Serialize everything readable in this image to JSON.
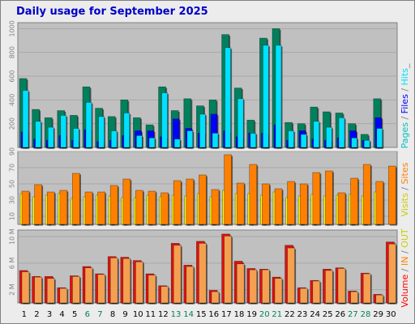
{
  "title": "Daily usage for September 2025",
  "colors": {
    "pages": "#00805c",
    "files": "#0000ff",
    "hits": "#00e0ff",
    "visits": "#ffff00",
    "sites": "#ff8000",
    "volume": "#ff0000",
    "in": "#ff8000",
    "out": "#ffff00",
    "plot_bg": "#c0c0c0",
    "weekend_label": "#00805c",
    "weekday_label": "#000000"
  },
  "labels": {
    "top_legend": [
      {
        "text": "Pages",
        "color": "#00c0c0"
      },
      {
        "text": " / ",
        "color": "#808080"
      },
      {
        "text": "Files",
        "color": "#0000ff"
      },
      {
        "text": " / ",
        "color": "#808080"
      },
      {
        "text": "Hits",
        "color": "#00e0ff"
      },
      {
        "text": "_",
        "color": "#808080"
      }
    ],
    "mid_legend": [
      {
        "text": "Visits",
        "color": "#cccc00"
      },
      {
        "text": " / ",
        "color": "#808080"
      },
      {
        "text": "Sites",
        "color": "#ff8000"
      }
    ],
    "bottom_legend": [
      {
        "text": "Volume",
        "color": "#ff0000"
      },
      {
        "text": " / ",
        "color": "#808080"
      },
      {
        "text": "IN",
        "color": "#ff8000"
      },
      {
        "text": " / ",
        "color": "#808080"
      },
      {
        "text": "OUT",
        "color": "#cccc00"
      }
    ]
  },
  "chart_data": [
    {
      "type": "bar",
      "name": "hits-files-pages",
      "series": [
        {
          "name": "Pages",
          "values": [
            580,
            320,
            250,
            310,
            270,
            510,
            330,
            260,
            400,
            250,
            190,
            510,
            310,
            410,
            350,
            400,
            950,
            500,
            230,
            920,
            1000,
            210,
            200,
            340,
            300,
            290,
            200,
            110,
            410,
            0
          ]
        },
        {
          "name": "Files",
          "values": [
            130,
            70,
            60,
            100,
            60,
            150,
            50,
            60,
            100,
            140,
            140,
            90,
            240,
            160,
            120,
            280,
            140,
            90,
            120,
            120,
            190,
            60,
            140,
            70,
            60,
            80,
            140,
            60,
            250,
            0
          ]
        },
        {
          "name": "Hits",
          "values": [
            480,
            220,
            170,
            270,
            160,
            380,
            260,
            140,
            290,
            100,
            80,
            460,
            70,
            140,
            280,
            120,
            840,
            410,
            120,
            860,
            860,
            140,
            110,
            220,
            170,
            250,
            80,
            60,
            160,
            0
          ]
        }
      ],
      "ylim": [
        0,
        1050
      ],
      "yticks": [
        200,
        400,
        600,
        800,
        1000
      ]
    },
    {
      "type": "bar",
      "name": "visits-sites",
      "series": [
        {
          "name": "Visits",
          "values": [
            38,
            34,
            36,
            38,
            32,
            34,
            36,
            35,
            33,
            33,
            36,
            34,
            36,
            35,
            38,
            34,
            42,
            38,
            38,
            36,
            40,
            33,
            35,
            37,
            35,
            36,
            37,
            35,
            40,
            0
          ]
        },
        {
          "name": "Sites",
          "values": [
            41,
            49,
            40,
            42,
            63,
            40,
            40,
            48,
            56,
            42,
            41,
            39,
            54,
            56,
            61,
            43,
            86,
            51,
            74,
            50,
            44,
            53,
            50,
            64,
            66,
            39,
            57,
            74,
            53,
            72
          ]
        }
      ],
      "ylim": [
        0,
        90
      ],
      "yticks": [
        10,
        30,
        50,
        70,
        90
      ]
    },
    {
      "type": "bar",
      "name": "volume",
      "series": [
        {
          "name": "Volume",
          "values": [
            4.9,
            4.0,
            4.0,
            2.3,
            4.1,
            5.5,
            4.4,
            7.0,
            6.9,
            6.4,
            4.4,
            2.6,
            9.0,
            5.7,
            9.3,
            1.9,
            10.4,
            6.3,
            5.2,
            5.1,
            3.9,
            8.7,
            2.3,
            3.4,
            5.1,
            5.3,
            1.8,
            4.5,
            1.3,
            9.2
          ]
        },
        {
          "name": "OUT",
          "values": [
            4.7,
            3.9,
            3.7,
            2.2,
            4.0,
            5.3,
            4.3,
            6.8,
            6.7,
            6.2,
            4.2,
            2.5,
            8.7,
            5.5,
            9.0,
            1.7,
            10.1,
            5.9,
            5.0,
            5.0,
            3.7,
            8.3,
            2.2,
            3.3,
            4.9,
            5.2,
            1.7,
            4.4,
            1.2,
            8.9
          ]
        }
      ],
      "ylim": [
        0,
        11
      ],
      "yticks": [
        2,
        6,
        10
      ],
      "ytick_labels": [
        "2 M",
        "6 M",
        "10 M"
      ]
    }
  ],
  "days": [
    "1",
    "2",
    "3",
    "4",
    "5",
    "6",
    "7",
    "8",
    "9",
    "10",
    "11",
    "12",
    "13",
    "14",
    "15",
    "16",
    "17",
    "18",
    "19",
    "20",
    "21",
    "22",
    "23",
    "24",
    "25",
    "26",
    "27",
    "28",
    "29",
    "30"
  ],
  "weekend_days": [
    "6",
    "7",
    "13",
    "14",
    "20",
    "21",
    "27",
    "28"
  ]
}
